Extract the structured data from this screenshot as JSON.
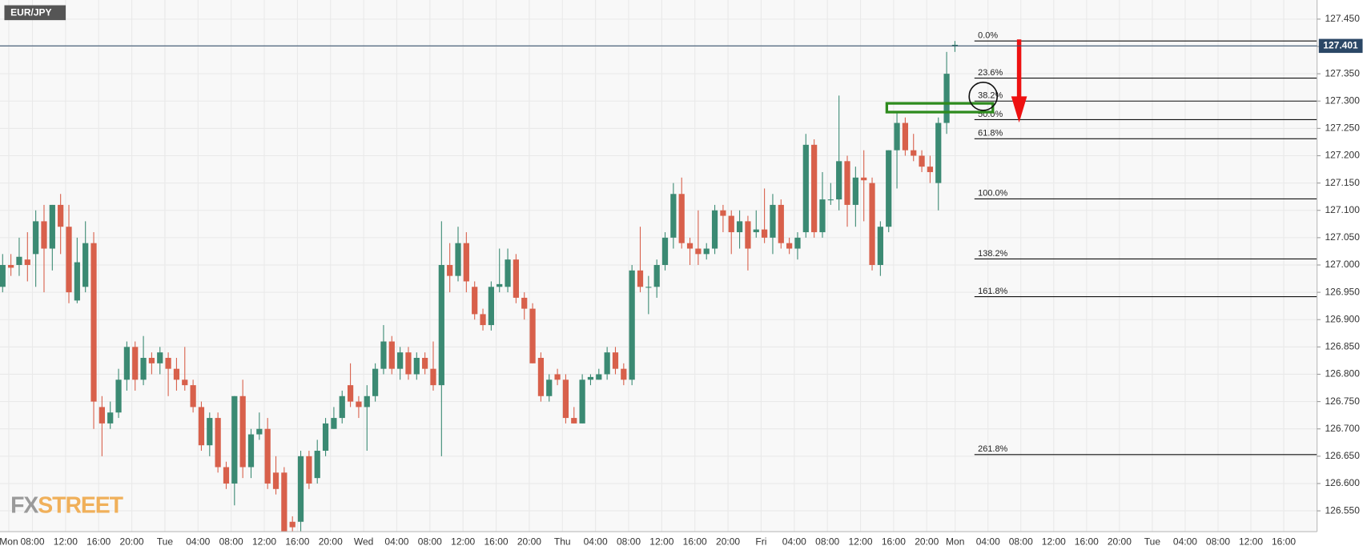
{
  "chart_data": {
    "type": "candlestick",
    "title": "EUR/JPY",
    "watermark": [
      "FX",
      "STREET"
    ],
    "up_color": "#3b8a73",
    "down_color": "#d8604b",
    "grid": true,
    "ylim": [
      126.512,
      127.485
    ],
    "yticks": [
      {
        "value": 126.55,
        "label": "126.550"
      },
      {
        "value": 126.6,
        "label": "126.600"
      },
      {
        "value": 126.65,
        "label": "126.650"
      },
      {
        "value": 126.7,
        "label": "126.700"
      },
      {
        "value": 126.75,
        "label": "126.750"
      },
      {
        "value": 126.8,
        "label": "126.800"
      },
      {
        "value": 126.85,
        "label": "126.850"
      },
      {
        "value": 126.9,
        "label": "126.900"
      },
      {
        "value": 126.95,
        "label": "126.950"
      },
      {
        "value": 127.0,
        "label": "127.000"
      },
      {
        "value": 127.05,
        "label": "127.050"
      },
      {
        "value": 127.1,
        "label": "127.100"
      },
      {
        "value": 127.15,
        "label": "127.150"
      },
      {
        "value": 127.2,
        "label": "127.200"
      },
      {
        "value": 127.25,
        "label": "127.250"
      },
      {
        "value": 127.3,
        "label": "127.300"
      },
      {
        "value": 127.35,
        "label": "127.350"
      },
      {
        "value": 127.4,
        "label": "127.400"
      },
      {
        "value": 127.45,
        "label": "127.450"
      }
    ],
    "x_labels": [
      "Mon",
      "08:00",
      "12:00",
      "16:00",
      "20:00",
      "Tue",
      "04:00",
      "08:00",
      "12:00",
      "16:00",
      "20:00",
      "Wed",
      "04:00",
      "08:00",
      "12:00",
      "16:00",
      "20:00",
      "Thu",
      "04:00",
      "08:00",
      "12:00",
      "16:00",
      "20:00",
      "Fri",
      "04:00",
      "08:00",
      "12:00",
      "16:00",
      "20:00",
      "Mon",
      "04:00",
      "08:00",
      "12:00",
      "16:00",
      "20:00",
      "Tue",
      "04:00",
      "08:00",
      "12:00",
      "16:00"
    ],
    "current_price": 127.401,
    "fib_levels": [
      {
        "label": "0.0%",
        "value": 127.41
      },
      {
        "label": "23.6%",
        "value": 127.342
      },
      {
        "label": "38.2%",
        "value": 127.3
      },
      {
        "label": "50.0%",
        "value": 127.266
      },
      {
        "label": "61.8%",
        "value": 127.231
      },
      {
        "label": "100.0%",
        "value": 127.121
      },
      {
        "label": "138.2%",
        "value": 127.011
      },
      {
        "label": "161.8%",
        "value": 126.942
      },
      {
        "label": "261.8%",
        "value": 126.653
      }
    ],
    "open": [
      126.96,
      127.0,
      127.0,
      127.01,
      127.02,
      127.08,
      127.03,
      127.11,
      127.07,
      126.935,
      126.96,
      127.04,
      126.74,
      126.71,
      126.73,
      126.79,
      126.85,
      126.79,
      126.83,
      126.82,
      126.83,
      126.81,
      126.79,
      126.78,
      126.74,
      126.67,
      126.72,
      126.63,
      126.6,
      126.76,
      126.63,
      126.69,
      126.7,
      126.62,
      126.62,
      126.53,
      126.53,
      126.65,
      126.61,
      126.66,
      126.7,
      126.72,
      126.78,
      126.75,
      126.74,
      126.76,
      126.81,
      126.86,
      126.81,
      126.84,
      126.8,
      126.83,
      126.81,
      126.78,
      127.0,
      126.98,
      127.04,
      126.96,
      126.91,
      126.89,
      126.96,
      126.96,
      127.01,
      126.94,
      126.92,
      126.83,
      126.76,
      126.8,
      126.79,
      126.72,
      126.71,
      126.79,
      126.79,
      126.8,
      126.84,
      126.81,
      126.79,
      126.99,
      126.96,
      126.96,
      127.0,
      127.05,
      127.13,
      127.04,
      127.03,
      127.02,
      127.03,
      127.1,
      127.09,
      127.06,
      127.08,
      127.06,
      127.065,
      127.05,
      127.11,
      127.04,
      127.03,
      127.06,
      127.22,
      127.06,
      127.12,
      127.12,
      127.19,
      127.11,
      127.16,
      127.15,
      127.0,
      127.07,
      127.21,
      127.26,
      127.21,
      127.2,
      127.18,
      127.15,
      127.26,
      127.4
    ],
    "high": [
      127.02,
      127.02,
      127.05,
      127.06,
      127.1,
      127.11,
      127.11,
      127.13,
      127.11,
      127.05,
      127.08,
      127.06,
      126.76,
      126.75,
      126.81,
      126.86,
      126.86,
      126.87,
      126.84,
      126.85,
      126.84,
      126.83,
      126.85,
      126.79,
      126.75,
      126.73,
      126.73,
      126.64,
      126.76,
      126.79,
      126.7,
      126.73,
      126.72,
      126.65,
      126.63,
      126.54,
      126.66,
      126.66,
      126.68,
      126.72,
      126.74,
      126.77,
      126.82,
      126.76,
      126.78,
      126.82,
      126.89,
      126.87,
      126.85,
      126.85,
      126.84,
      126.84,
      126.86,
      127.08,
      127.04,
      127.07,
      127.06,
      126.97,
      126.92,
      126.97,
      127.03,
      127.03,
      127.02,
      126.95,
      126.93,
      126.84,
      126.8,
      126.81,
      126.8,
      126.74,
      126.8,
      126.8,
      126.81,
      126.85,
      126.85,
      126.82,
      127.0,
      127.07,
      126.98,
      127.01,
      127.06,
      127.15,
      127.16,
      127.05,
      127.1,
      127.04,
      127.11,
      127.11,
      127.1,
      127.1,
      127.09,
      127.1,
      127.14,
      127.13,
      127.12,
      127.05,
      127.06,
      127.24,
      127.23,
      127.17,
      127.15,
      127.31,
      127.2,
      127.18,
      127.21,
      127.16,
      127.08,
      127.21,
      127.28,
      127.27,
      127.24,
      127.21,
      127.2,
      127.27,
      127.39,
      127.41
    ],
    "low": [
      126.95,
      126.98,
      126.98,
      126.97,
      126.96,
      126.95,
      126.99,
      127.02,
      126.93,
      126.93,
      126.95,
      126.7,
      126.65,
      126.7,
      126.72,
      126.77,
      126.77,
      126.78,
      126.8,
      126.8,
      126.76,
      126.77,
      126.77,
      126.73,
      126.66,
      126.65,
      126.62,
      126.59,
      126.56,
      126.61,
      126.61,
      126.68,
      126.59,
      126.58,
      126.49,
      126.51,
      126.51,
      126.59,
      126.6,
      126.65,
      126.7,
      126.71,
      126.74,
      126.72,
      126.66,
      126.75,
      126.8,
      126.8,
      126.79,
      126.79,
      126.79,
      126.8,
      126.77,
      126.65,
      126.95,
      126.97,
      126.95,
      126.9,
      126.88,
      126.88,
      126.95,
      126.95,
      126.93,
      126.9,
      126.82,
      126.75,
      126.75,
      126.78,
      126.71,
      126.71,
      126.71,
      126.78,
      126.79,
      126.79,
      126.8,
      126.78,
      126.78,
      126.95,
      126.91,
      126.94,
      126.99,
      127.03,
      127.03,
      127.0,
      127.0,
      127.01,
      127.02,
      127.06,
      127.02,
      127.03,
      126.99,
      127.05,
      127.04,
      127.02,
      127.03,
      127.02,
      127.01,
      127.05,
      127.05,
      127.05,
      127.11,
      127.1,
      127.07,
      127.07,
      127.08,
      126.99,
      126.98,
      127.06,
      127.14,
      127.2,
      127.19,
      127.17,
      127.15,
      127.1,
      127.24,
      127.39
    ],
    "close": [
      127.0,
      126.995,
      127.015,
      127.0,
      127.08,
      127.03,
      127.11,
      127.07,
      126.95,
      127.005,
      127.04,
      126.75,
      126.71,
      126.73,
      126.79,
      126.85,
      126.79,
      126.83,
      126.82,
      126.84,
      126.81,
      126.79,
      126.78,
      126.74,
      126.67,
      126.72,
      126.63,
      126.6,
      126.76,
      126.63,
      126.69,
      126.7,
      126.6,
      126.59,
      126.51,
      126.52,
      126.65,
      126.6,
      126.66,
      126.71,
      126.72,
      126.76,
      126.75,
      126.74,
      126.76,
      126.81,
      126.86,
      126.81,
      126.84,
      126.8,
      126.83,
      126.81,
      126.78,
      127.0,
      126.98,
      127.04,
      126.97,
      126.91,
      126.89,
      126.96,
      126.965,
      127.01,
      126.94,
      126.92,
      126.82,
      126.76,
      126.79,
      126.79,
      126.72,
      126.71,
      126.79,
      126.795,
      126.8,
      126.84,
      126.81,
      126.79,
      126.99,
      126.96,
      126.96,
      127.0,
      127.05,
      127.13,
      127.04,
      127.03,
      127.02,
      127.03,
      127.1,
      127.09,
      127.06,
      127.08,
      127.03,
      127.065,
      127.05,
      127.11,
      127.04,
      127.03,
      127.05,
      127.22,
      127.06,
      127.12,
      127.12,
      127.19,
      127.11,
      127.16,
      127.155,
      127.0,
      127.07,
      127.21,
      127.26,
      127.21,
      127.2,
      127.18,
      127.17,
      127.26,
      127.35,
      127.403
    ]
  }
}
